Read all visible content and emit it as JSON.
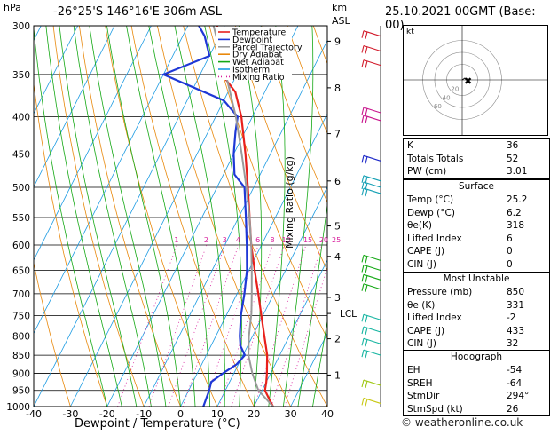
{
  "header": {
    "hpa_unit": "hPa",
    "location": "-26°25'S  146°16'E  306m  ASL",
    "km_unit": "km",
    "asl": "ASL",
    "datetime": "25.10.2021  00GMT  (Base: 00)"
  },
  "legend": [
    {
      "label": "Temperature",
      "color": "#e8201c"
    },
    {
      "label": "Dewpoint",
      "color": "#1f38d6"
    },
    {
      "label": "Parcel Trajectory",
      "color": "#9a9a9a"
    },
    {
      "label": "Dry Adiabat",
      "color": "#e8880b"
    },
    {
      "label": "Wet Adiabat",
      "color": "#14a814"
    },
    {
      "label": "Isotherm",
      "color": "#1c9be2"
    },
    {
      "label": "Mixing Ratio",
      "color": "#d81c9c"
    }
  ],
  "chart_data": {
    "type": "line",
    "subtype": "skew-T log-P sounding",
    "xlabel": "Dewpoint / Temperature (°C)",
    "ylabel": "hPa",
    "secondary_ylabel": "Mixing Ratio (g/kg)",
    "x_ticks": [
      -40,
      -30,
      -20,
      -10,
      0,
      10,
      20,
      30,
      40
    ],
    "y_ticks": [
      300,
      350,
      400,
      450,
      500,
      550,
      600,
      650,
      700,
      750,
      800,
      850,
      900,
      950,
      1000
    ],
    "xlim": [
      -40,
      40
    ],
    "ylim": [
      1000,
      300
    ],
    "y_scale": "log",
    "km_ticks": [
      {
        "label": "9",
        "p": 315
      },
      {
        "label": "8",
        "p": 365
      },
      {
        "label": "7",
        "p": 422
      },
      {
        "label": "6",
        "p": 490
      },
      {
        "label": "5",
        "p": 565
      },
      {
        "label": "4",
        "p": 622
      },
      {
        "label": "3",
        "p": 708
      },
      {
        "label": "2",
        "p": 807
      },
      {
        "label": "1",
        "p": 905
      }
    ],
    "lcl": {
      "label": "LCL",
      "p": 745
    },
    "mixing_ratio_labels": [
      "1",
      "2",
      "3",
      "4",
      "6",
      "8",
      "10",
      "15",
      "20",
      "25"
    ],
    "series": [
      {
        "name": "Temperature",
        "color": "#e8201c",
        "points": [
          [
            1000,
            25.2
          ],
          [
            975,
            23.0
          ],
          [
            950,
            20.8
          ],
          [
            925,
            20.0
          ],
          [
            900,
            19.0
          ],
          [
            875,
            17.8
          ],
          [
            850,
            16.6
          ],
          [
            800,
            13.2
          ],
          [
            750,
            9.6
          ],
          [
            700,
            5.8
          ],
          [
            650,
            1.6
          ],
          [
            600,
            -2.8
          ],
          [
            550,
            -7.0
          ],
          [
            500,
            -11.6
          ],
          [
            450,
            -16.8
          ],
          [
            400,
            -23.0
          ],
          [
            370,
            -28.0
          ],
          [
            350,
            -34.0
          ],
          [
            330,
            -38.0
          ],
          [
            300,
            -42.0
          ]
        ]
      },
      {
        "name": "Dewpoint",
        "color": "#1f38d6",
        "points": [
          [
            1000,
            6.2
          ],
          [
            950,
            5.6
          ],
          [
            925,
            5.0
          ],
          [
            900,
            7.0
          ],
          [
            875,
            9.5
          ],
          [
            850,
            10.5
          ],
          [
            825,
            8.0
          ],
          [
            800,
            6.5
          ],
          [
            750,
            4.0
          ],
          [
            700,
            2.0
          ],
          [
            650,
            -0.5
          ],
          [
            600,
            -4.0
          ],
          [
            550,
            -8.0
          ],
          [
            500,
            -12.5
          ],
          [
            480,
            -17.0
          ],
          [
            450,
            -20.0
          ],
          [
            420,
            -22.5
          ],
          [
            400,
            -24.0
          ],
          [
            380,
            -30.0
          ],
          [
            350,
            -50.0
          ],
          [
            330,
            -40.0
          ],
          [
            310,
            -44.0
          ],
          [
            300,
            -47.0
          ]
        ]
      },
      {
        "name": "Parcel Trajectory",
        "color": "#9a9a9a",
        "points": [
          [
            1000,
            25.2
          ],
          [
            950,
            19.0
          ],
          [
            900,
            15.0
          ],
          [
            850,
            11.5
          ],
          [
            800,
            9.0
          ],
          [
            745,
            6.6
          ],
          [
            700,
            4.0
          ],
          [
            650,
            0.8
          ],
          [
            600,
            -2.8
          ],
          [
            550,
            -7.0
          ],
          [
            500,
            -12.0
          ],
          [
            450,
            -17.8
          ],
          [
            400,
            -24.5
          ],
          [
            350,
            -33.0
          ],
          [
            300,
            -43.0
          ]
        ]
      }
    ]
  },
  "hodograph": {
    "title": "kt",
    "ring_labels": [
      "20",
      "40",
      "60"
    ],
    "ring_radii_kt": [
      20,
      40,
      60
    ]
  },
  "indices": [
    {
      "label": "K",
      "value": "36"
    },
    {
      "label": "Totals Totals",
      "value": "52"
    },
    {
      "label": "PW (cm)",
      "value": "3.01"
    }
  ],
  "surface": {
    "title": "Surface",
    "rows": [
      {
        "label": "Temp (°C)",
        "value": "25.2"
      },
      {
        "label": "Dewp (°C)",
        "value": "6.2"
      },
      {
        "label": "θe(K)",
        "value": "318"
      },
      {
        "label": "Lifted Index",
        "value": "6"
      },
      {
        "label": "CAPE (J)",
        "value": "0"
      },
      {
        "label": "CIN (J)",
        "value": "0"
      }
    ]
  },
  "most_unstable": {
    "title": "Most Unstable",
    "rows": [
      {
        "label": "Pressure (mb)",
        "value": "850"
      },
      {
        "label": "θe (K)",
        "value": "331"
      },
      {
        "label": "Lifted Index",
        "value": "-2"
      },
      {
        "label": "CAPE (J)",
        "value": "433"
      },
      {
        "label": "CIN (J)",
        "value": "32"
      }
    ]
  },
  "hodograph_table": {
    "title": "Hodograph",
    "rows": [
      {
        "label": "EH",
        "value": "-54"
      },
      {
        "label": "SREH",
        "value": "-64"
      },
      {
        "label": "StmDir",
        "value": "294°"
      },
      {
        "label": "StmSpd (kt)",
        "value": "26"
      }
    ]
  },
  "footer": "© weatheronline.co.uk"
}
